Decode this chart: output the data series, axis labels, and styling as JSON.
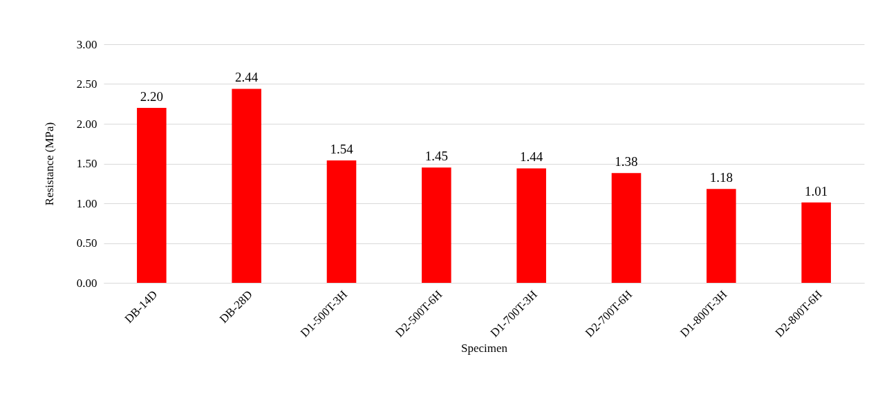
{
  "chart_data": {
    "type": "bar",
    "xlabel": "Specimen",
    "ylabel": "Resistance (MPa)",
    "categories": [
      "DB-14D",
      "DB-28D",
      "D1-500T-3H",
      "D2-500T-6H",
      "D1-700T-3H",
      "D2-700T-6H",
      "D1-800T-3H",
      "D2-800T-6H"
    ],
    "values": [
      2.2,
      2.44,
      1.54,
      1.45,
      1.44,
      1.38,
      1.18,
      1.01
    ],
    "value_labels": [
      "2.20",
      "2.44",
      "1.54",
      "1.45",
      "1.44",
      "1.38",
      "1.18",
      "1.01"
    ],
    "color": "#ff0000",
    "ylim": [
      0,
      3
    ],
    "yticks": [
      {
        "value": 0,
        "label": "0.00"
      },
      {
        "value": 0.5,
        "label": "0.50"
      },
      {
        "value": 1,
        "label": "1.00"
      },
      {
        "value": 1.5,
        "label": "1.50"
      },
      {
        "value": 2,
        "label": "2.00"
      },
      {
        "value": 2.5,
        "label": "2.50"
      },
      {
        "value": 3,
        "label": "3.00"
      }
    ],
    "grid": "y"
  }
}
